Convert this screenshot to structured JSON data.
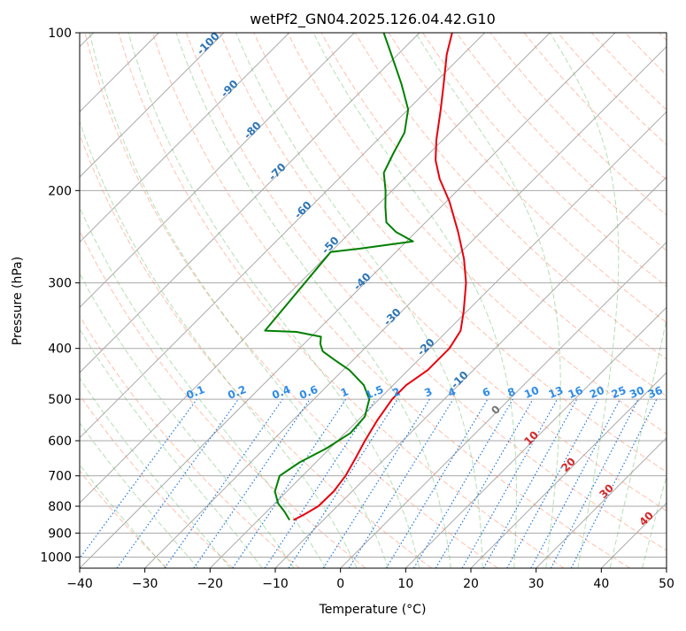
{
  "chart_data": {
    "type": "line",
    "title": "wetPf2_GN04.2025.126.04.42.G10",
    "xlabel": "Temperature (°C)",
    "ylabel": "Pressure (hPa)",
    "xlim": [
      -40,
      50
    ],
    "ylim": [
      1050,
      100
    ],
    "y_scale": "log",
    "x_ticks": [
      -40,
      -30,
      -20,
      -10,
      0,
      10,
      20,
      30,
      40,
      50
    ],
    "y_ticks": [
      100,
      200,
      300,
      400,
      500,
      600,
      700,
      800,
      900,
      1000
    ],
    "grid": true,
    "skew": true,
    "colors": {
      "temperature": "#e8000b",
      "dewpoint": "#008000",
      "isotherm": "#aaaaaa",
      "dry_adiabat": "#ff8c69",
      "moist_adiabat": "#5cb85c",
      "mixing_ratio": "#1e78dc",
      "dry_label": "#2e75b6",
      "isobar": "#aaaaaa"
    },
    "series": [
      {
        "name": "",
        "role": "temperature",
        "points": [
          {
            "p": 850,
            "t": -14.6
          },
          {
            "p": 830,
            "t": -13.8
          },
          {
            "p": 800,
            "t": -12.9
          },
          {
            "p": 750,
            "t": -12.8
          },
          {
            "p": 700,
            "t": -13.4
          },
          {
            "p": 650,
            "t": -14.5
          },
          {
            "p": 600,
            "t": -15.8
          },
          {
            "p": 550,
            "t": -17.0
          },
          {
            "p": 500,
            "t": -18.0
          },
          {
            "p": 470,
            "t": -18.0
          },
          {
            "p": 440,
            "t": -17.0
          },
          {
            "p": 400,
            "t": -17.0
          },
          {
            "p": 370,
            "t": -18.0
          },
          {
            "p": 340,
            "t": -20.5
          },
          {
            "p": 300,
            "t": -24.5
          },
          {
            "p": 270,
            "t": -28.5
          },
          {
            "p": 240,
            "t": -33.5
          },
          {
            "p": 210,
            "t": -39.5
          },
          {
            "p": 190,
            "t": -44.5
          },
          {
            "p": 175,
            "t": -48.0
          },
          {
            "p": 160,
            "t": -51.0
          },
          {
            "p": 140,
            "t": -55.0
          },
          {
            "p": 125,
            "t": -58.5
          },
          {
            "p": 110,
            "t": -62.5
          },
          {
            "p": 100,
            "t": -65.0
          }
        ]
      },
      {
        "name": "",
        "role": "dewpoint",
        "points": [
          {
            "p": 850,
            "t": -15.2
          },
          {
            "p": 820,
            "t": -17.2
          },
          {
            "p": 790,
            "t": -19.5
          },
          {
            "p": 750,
            "t": -21.8
          },
          {
            "p": 700,
            "t": -23.5
          },
          {
            "p": 660,
            "t": -22.5
          },
          {
            "p": 620,
            "t": -20.5
          },
          {
            "p": 580,
            "t": -19.2
          },
          {
            "p": 540,
            "t": -19.5
          },
          {
            "p": 500,
            "t": -21.5
          },
          {
            "p": 470,
            "t": -24.5
          },
          {
            "p": 440,
            "t": -29.0
          },
          {
            "p": 420,
            "t": -33.0
          },
          {
            "p": 405,
            "t": -36.0
          },
          {
            "p": 392,
            "t": -37.5
          },
          {
            "p": 380,
            "t": -38.5
          },
          {
            "p": 372,
            "t": -43.0
          },
          {
            "p": 370,
            "t": -48.0
          },
          {
            "p": 262,
            "t": -50.0
          },
          {
            "p": 258,
            "t": -46.0
          },
          {
            "p": 250,
            "t": -39.0
          },
          {
            "p": 240,
            "t": -43.0
          },
          {
            "p": 230,
            "t": -46.0
          },
          {
            "p": 215,
            "t": -48.5
          },
          {
            "p": 200,
            "t": -51.0
          },
          {
            "p": 185,
            "t": -54.0
          },
          {
            "p": 170,
            "t": -55.5
          },
          {
            "p": 155,
            "t": -57.0
          },
          {
            "p": 140,
            "t": -60.0
          },
          {
            "p": 125,
            "t": -65.0
          },
          {
            "p": 110,
            "t": -71.0
          },
          {
            "p": 100,
            "t": -75.5
          }
        ]
      }
    ],
    "annotations": {
      "dry_adiabat_labels": [
        "-100",
        "-90",
        "-80",
        "-70",
        "-60",
        "-50",
        "-40",
        "-30",
        "-20",
        "-10"
      ],
      "mixing_ratio_labels": [
        "0.1",
        "0.2",
        "0.4",
        "0.6",
        "1",
        "1.5",
        "2",
        "3",
        "4",
        "6",
        "8",
        "10",
        "13",
        "16",
        "20",
        "25",
        "30",
        "36"
      ],
      "moist_adiabat_labels": [
        "0",
        "10",
        "20",
        "30",
        "40"
      ]
    }
  }
}
